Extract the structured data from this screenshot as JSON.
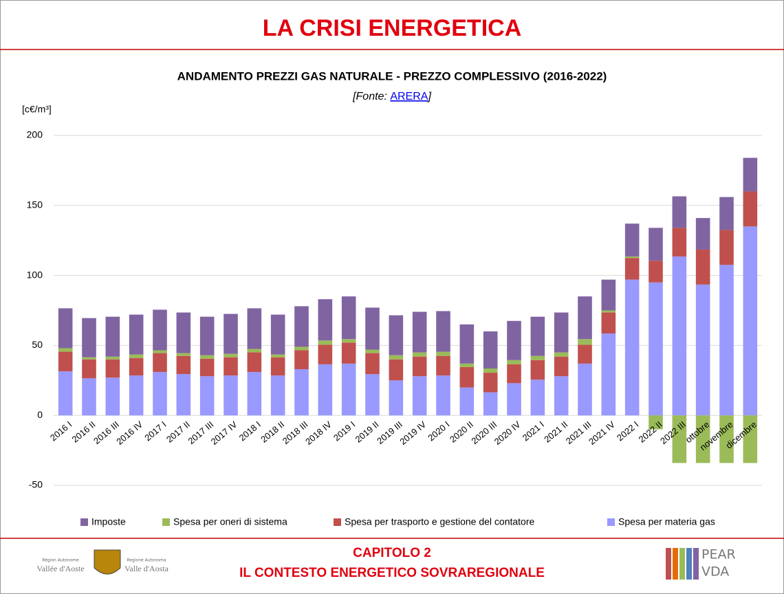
{
  "header": {
    "title": "LA CRISI ENERGETICA"
  },
  "chart_data": {
    "type": "stacked_bar",
    "title": "ANDAMENTO PREZZI GAS NATURALE - PREZZO COMPLESSIVO (2016-2022)",
    "source_prefix": "[Fonte: ",
    "source_link": "ARERA",
    "source_suffix": "]",
    "y_axis_label": "[c€/m³]",
    "categories": [
      "2016 I",
      "2016 II",
      "2016 III",
      "2016 IV",
      "2017 I",
      "2017 II",
      "2017 III",
      "2017 IV",
      "2018 I",
      "2018 II",
      "2018 III",
      "2018 IV",
      "2019 I",
      "2019 II",
      "2019 III",
      "2019 IV",
      "2020 I",
      "2020 II",
      "2020 III",
      "2020 IV",
      "2021 I",
      "2021 II",
      "2021 III",
      "2021 IV",
      "2022 I",
      "2022 II",
      "2022 III",
      "ottobre",
      "novembre",
      "dicembre"
    ],
    "series": [
      {
        "name": "Imposte",
        "color": "#8064a2",
        "values": [
          28.5,
          28,
          28.5,
          28.5,
          29,
          29,
          27.5,
          28.5,
          29,
          28.5,
          29,
          29.5,
          30.5,
          30,
          28.5,
          29,
          29,
          28,
          26.5,
          28,
          28,
          28.5,
          30.5,
          22,
          23.5,
          23.5,
          22.5,
          22.5,
          23.5,
          24
        ]
      },
      {
        "name": "Spesa per oneri di sistema",
        "color": "#9bbb59",
        "values": [
          2.5,
          1.5,
          2,
          2.5,
          2,
          2,
          2.5,
          2.5,
          2.5,
          2,
          2.5,
          3,
          2.5,
          2.5,
          3,
          3,
          3,
          2.5,
          3,
          3,
          3,
          3,
          4,
          1.5,
          1,
          -10,
          -34,
          -34,
          -34,
          -34
        ]
      },
      {
        "name": "Spesa per trasporto e gestione del contatore",
        "color": "#c0504d",
        "values": [
          14,
          13.5,
          13,
          12.5,
          13.5,
          13,
          12.5,
          13,
          14,
          13,
          13.5,
          14,
          15,
          15,
          15,
          14,
          14,
          14.5,
          14,
          13.5,
          14,
          14,
          13.5,
          15,
          15.5,
          15.5,
          20.5,
          25,
          25,
          25
        ]
      },
      {
        "name": "Spesa per materia gas",
        "color": "#9999ff",
        "values": [
          31.5,
          26.5,
          27,
          28.5,
          31,
          29.5,
          28,
          28.5,
          31,
          28.5,
          33,
          36.5,
          37,
          29.5,
          25,
          28,
          28.5,
          20,
          16.5,
          23,
          25.5,
          28,
          37,
          58.5,
          97,
          95,
          113.5,
          93.5,
          107.5,
          135
        ]
      }
    ],
    "ylim": [
      -50,
      200
    ],
    "yticks": [
      -50,
      0,
      50,
      100,
      150,
      200
    ],
    "grid": true
  },
  "footer": {
    "chapter": "CAPITOLO 2",
    "subtitle": "IL CONTESTO ENERGETICO SOVRAREGIONALE",
    "logo_left_1": "Région Autonome",
    "logo_left_2": "Vallée d'Aoste",
    "logo_right_1": "Regione Autonoma",
    "logo_right_2": "Valle d'Aosta",
    "logo_pear_1": "PEAR",
    "logo_pear_2": "VDA"
  }
}
